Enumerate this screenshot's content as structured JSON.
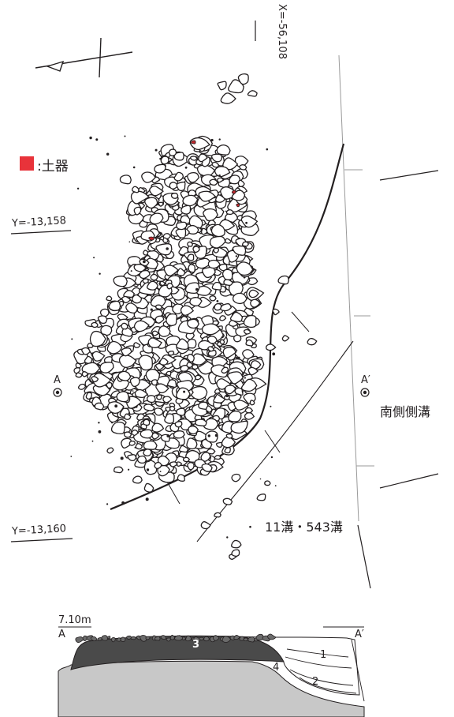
{
  "legend": {
    "swatch_color": "#e8333a",
    "label": ":土器"
  },
  "coords": {
    "x_top": "X=-56,108",
    "y_upper": "Y=-13,158",
    "y_lower": "Y=-13,160"
  },
  "section_points": {
    "a": "A",
    "a_prime": "A′"
  },
  "features": {
    "south_ditch": "南側側溝",
    "ditches": "11溝・543溝"
  },
  "profile": {
    "elevation": "7.10m",
    "a": "A",
    "a_prime": "A′",
    "layers": [
      "3",
      "1",
      "4",
      "2"
    ]
  },
  "colors": {
    "stone_fill": "#ffffff",
    "stone_stroke": "#231f20",
    "pottery": "#c1272d",
    "layer3": "#4a4a4a",
    "ground": "#c8c8c8"
  }
}
